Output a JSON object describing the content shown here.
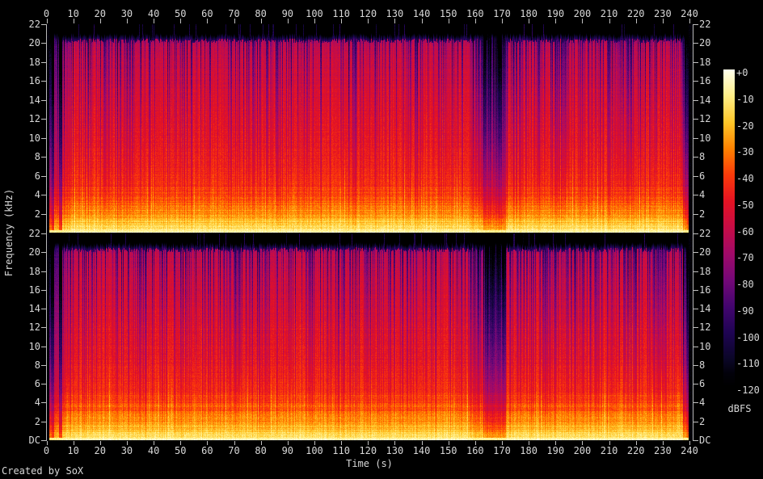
{
  "meta": {
    "creator_text": "Created by SoX"
  },
  "colors": {
    "background": "#000000",
    "text": "#d8d8d8",
    "tick": "#c0c0c0",
    "axis_line": "#b8b8b8"
  },
  "axes": {
    "time": {
      "title": "Time (s)",
      "tick_labels": [
        "0",
        "10",
        "20",
        "30",
        "40",
        "50",
        "60",
        "70",
        "80",
        "90",
        "100",
        "110",
        "120",
        "130",
        "140",
        "150",
        "160",
        "170",
        "180",
        "190",
        "200",
        "210",
        "220",
        "230",
        "240"
      ]
    },
    "frequency": {
      "title": "Frequency (kHz)",
      "panel_tick_labels": [
        "22",
        "20",
        "18",
        "16",
        "14",
        "12",
        "10",
        "8",
        "6",
        "4",
        "2"
      ],
      "dc_label": "DC"
    },
    "colorbar": {
      "unit": "dBFS",
      "tick_labels": [
        "+0",
        "-10",
        "-20",
        "-30",
        "-40",
        "-50",
        "-60",
        "-70",
        "-80",
        "-90",
        "-100",
        "-110",
        "-120"
      ]
    }
  },
  "chart_data": {
    "type": "heatmap",
    "subtype": "audio-spectrogram",
    "tool": "SoX",
    "channels": 2,
    "x": {
      "label": "Time (s)",
      "min": 0,
      "max": 240,
      "tick_step": 10
    },
    "y": {
      "label": "Frequency (kHz)",
      "min": 0,
      "max": 22.05,
      "tick_step": 2,
      "min_label": "DC"
    },
    "z": {
      "label": "dBFS",
      "max": 0,
      "min": -120,
      "tick_step": 10
    },
    "legend_position": "right-colorbar",
    "grid": false,
    "description": "Two stacked spectrogram panels (stereo channels) of a ~240 s track. Loud broadband music from ~5 s to ~238 s, bright yellow energy below ~4 kHz, red body up to ~20 kHz, sharp encoder-style cutoff near 20.3 kHz (black above), short quiet intro columns near 0-5 s, a quieter purple breakdown around 163-172 s, and fade-out at the right edge.",
    "cutoff_khz": 20.3,
    "dc_band_db": -9,
    "palette_stops": [
      {
        "u": 0.0,
        "c": [
          0,
          0,
          0
        ]
      },
      {
        "u": 0.04,
        "c": [
          2,
          1,
          10
        ]
      },
      {
        "u": 0.083,
        "c": [
          10,
          6,
          38
        ]
      },
      {
        "u": 0.167,
        "c": [
          30,
          4,
          82
        ]
      },
      {
        "u": 0.25,
        "c": [
          66,
          5,
          110
        ]
      },
      {
        "u": 0.333,
        "c": [
          115,
          8,
          120
        ]
      },
      {
        "u": 0.417,
        "c": [
          160,
          10,
          105
        ]
      },
      {
        "u": 0.5,
        "c": [
          198,
          12,
          70
        ]
      },
      {
        "u": 0.583,
        "c": [
          228,
          18,
          35
        ]
      },
      {
        "u": 0.667,
        "c": [
          251,
          58,
          10
        ]
      },
      {
        "u": 0.75,
        "c": [
          255,
          130,
          0
        ]
      },
      {
        "u": 0.833,
        "c": [
          255,
          198,
          40
        ]
      },
      {
        "u": 0.917,
        "c": [
          255,
          238,
          135
        ]
      },
      {
        "u": 1.0,
        "c": [
          255,
          255,
          238
        ]
      }
    ],
    "freq_profile_db": [
      [
        0,
        -4
      ],
      [
        0.2,
        -10
      ],
      [
        0.5,
        -14
      ],
      [
        1,
        -18
      ],
      [
        1.5,
        -22
      ],
      [
        2,
        -26
      ],
      [
        3,
        -32
      ],
      [
        4,
        -37
      ],
      [
        5,
        -41
      ],
      [
        6,
        -43
      ],
      [
        8,
        -46
      ],
      [
        10,
        -48
      ],
      [
        12,
        -50
      ],
      [
        14,
        -52
      ],
      [
        16,
        -54
      ],
      [
        18,
        -57
      ],
      [
        19.5,
        -60
      ],
      [
        20.2,
        -63
      ],
      [
        22.05,
        -66
      ]
    ],
    "segments": [
      {
        "t0": 0,
        "t1": 0.9,
        "level": 0.02,
        "streak_p": 0,
        "flare_p": 0
      },
      {
        "t0": 0.9,
        "t1": 1.8,
        "level": 0.3,
        "streak_p": 0.2,
        "flare_p": 0
      },
      {
        "t0": 1.8,
        "t1": 2.8,
        "level": 0.08,
        "streak_p": 0,
        "flare_p": 0
      },
      {
        "t0": 2.8,
        "t1": 4.6,
        "level": 0.65,
        "streak_p": 0.2,
        "flare_p": 0
      },
      {
        "t0": 4.6,
        "t1": 5.8,
        "level": 0.12,
        "streak_p": 0,
        "flare_p": 0
      },
      {
        "t0": 5.8,
        "t1": 9,
        "level": 0.85,
        "streak_p": 0.3,
        "flare_p": 0.05
      },
      {
        "t0": 9,
        "t1": 158,
        "level": 1,
        "streak_p": 0.35,
        "flare_p": 0.07
      },
      {
        "t0": 158,
        "t1": 163,
        "level": 0.82,
        "streak_p": 0.5,
        "flare_p": 0.03
      },
      {
        "t0": 163,
        "t1": 171.5,
        "level": 0.55,
        "streak_p": 0.8,
        "flare_p": 0
      },
      {
        "t0": 171.5,
        "t1": 237.5,
        "level": 1,
        "streak_p": 0.55,
        "flare_p": 0.05
      },
      {
        "t0": 237.5,
        "t1": 239,
        "level": 0.55,
        "streak_p": 0.4,
        "flare_p": 0
      },
      {
        "t0": 239,
        "t1": 239.6,
        "level": 0.25,
        "streak_p": 0.3,
        "flare_p": 0
      },
      {
        "t0": 239.6,
        "t1": 241.5,
        "level": 0.02,
        "streak_p": 0,
        "flare_p": 0
      }
    ]
  }
}
